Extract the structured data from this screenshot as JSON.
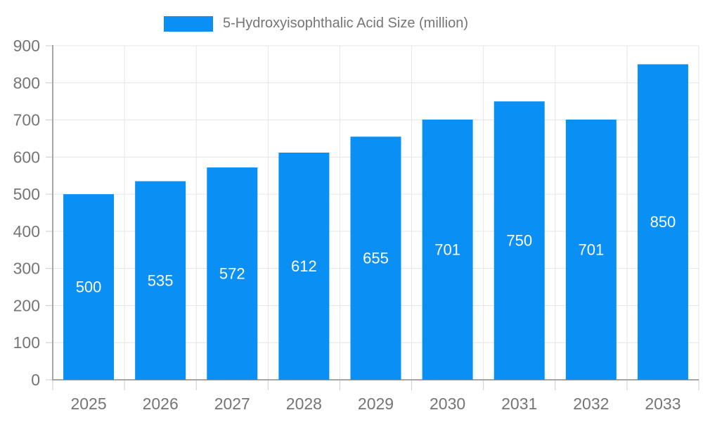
{
  "legend": {
    "label": "5-Hydroxyisophthalic Acid Size (million)"
  },
  "chart_data": {
    "type": "bar",
    "title": "5-Hydroxyisophthalic Acid Size (million)",
    "categories": [
      "2025",
      "2026",
      "2027",
      "2028",
      "2029",
      "2030",
      "2031",
      "2032",
      "2033"
    ],
    "values": [
      500,
      535,
      572,
      612,
      655,
      701,
      750,
      701,
      850
    ],
    "xlabel": "",
    "ylabel": "",
    "ylim": [
      0,
      900
    ],
    "ytick_step": 100,
    "grid": true,
    "legend_position": "top",
    "bar_color": "#0a90f5",
    "value_label_color": "#ffffff",
    "axis_text_color": "#757575",
    "grid_color": "#e6e6e6",
    "tick_color": "#cccccc",
    "axis_line_color": "#a6a6a6"
  }
}
